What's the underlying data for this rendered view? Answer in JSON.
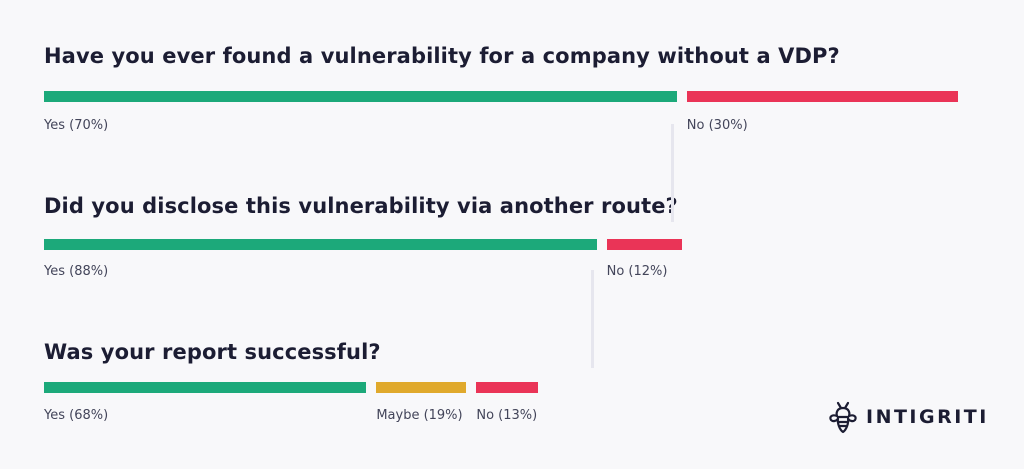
{
  "chart_data": [
    {
      "type": "bar",
      "title": "Have you ever found a vulnerability for a company without a VDP?",
      "series": [
        {
          "label": "Yes (70%)",
          "value": 70,
          "color": "#1ca97a"
        },
        {
          "label": "No (30%)",
          "value": 30,
          "color": "#ea3457"
        }
      ]
    },
    {
      "type": "bar",
      "title": "Did you disclose this vulnerability via another route?",
      "series": [
        {
          "label": "Yes (88%)",
          "value": 88,
          "color": "#1ca97a"
        },
        {
          "label": "No (12%)",
          "value": 12,
          "color": "#ea3457"
        }
      ]
    },
    {
      "type": "bar",
      "title": "Was your report successful?",
      "series": [
        {
          "label": "Yes (68%)",
          "value": 68,
          "color": "#1ca97a"
        },
        {
          "label": "Maybe (19%)",
          "value": 19,
          "color": "#e0a92c"
        },
        {
          "label": "No (13%)",
          "value": 13,
          "color": "#ea3457"
        }
      ]
    }
  ],
  "logo": {
    "text": "INTIGRITI",
    "icon": "bee-icon"
  }
}
